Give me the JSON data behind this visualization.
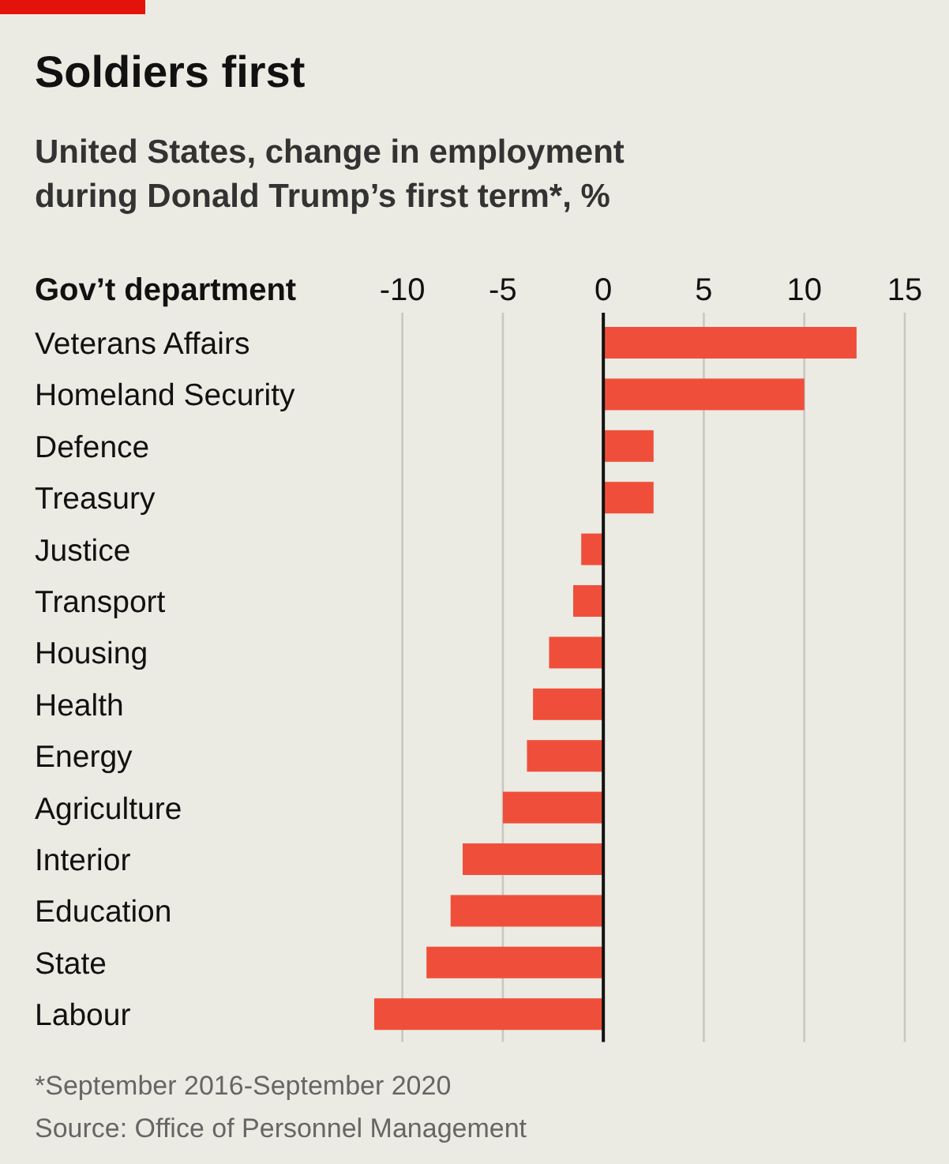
{
  "chart_data": {
    "type": "bar",
    "orientation": "horizontal",
    "title": "Soldiers first",
    "subtitle": "United States, change in employment during Donald Trump’s first term*, %",
    "ylabel": "Gov’t department",
    "categories": [
      "Veterans Affairs",
      "Homeland Security",
      "Defence",
      "Treasury",
      "Justice",
      "Transport",
      "Housing",
      "Health",
      "Energy",
      "Agriculture",
      "Interior",
      "Education",
      "State",
      "Labour"
    ],
    "values": [
      12.6,
      10.0,
      2.5,
      2.5,
      -1.1,
      -1.5,
      -2.7,
      -3.5,
      -3.8,
      -5.0,
      -7.0,
      -7.6,
      -8.8,
      -11.4
    ],
    "color": "#ef4f3a",
    "xlim": [
      -11.4,
      15
    ],
    "xticks": [
      -10,
      -5,
      0,
      5,
      10,
      15
    ],
    "grid": "x",
    "annotations": [
      "*September 2016-September 2020",
      "Source: Office of Personnel Management"
    ]
  }
}
